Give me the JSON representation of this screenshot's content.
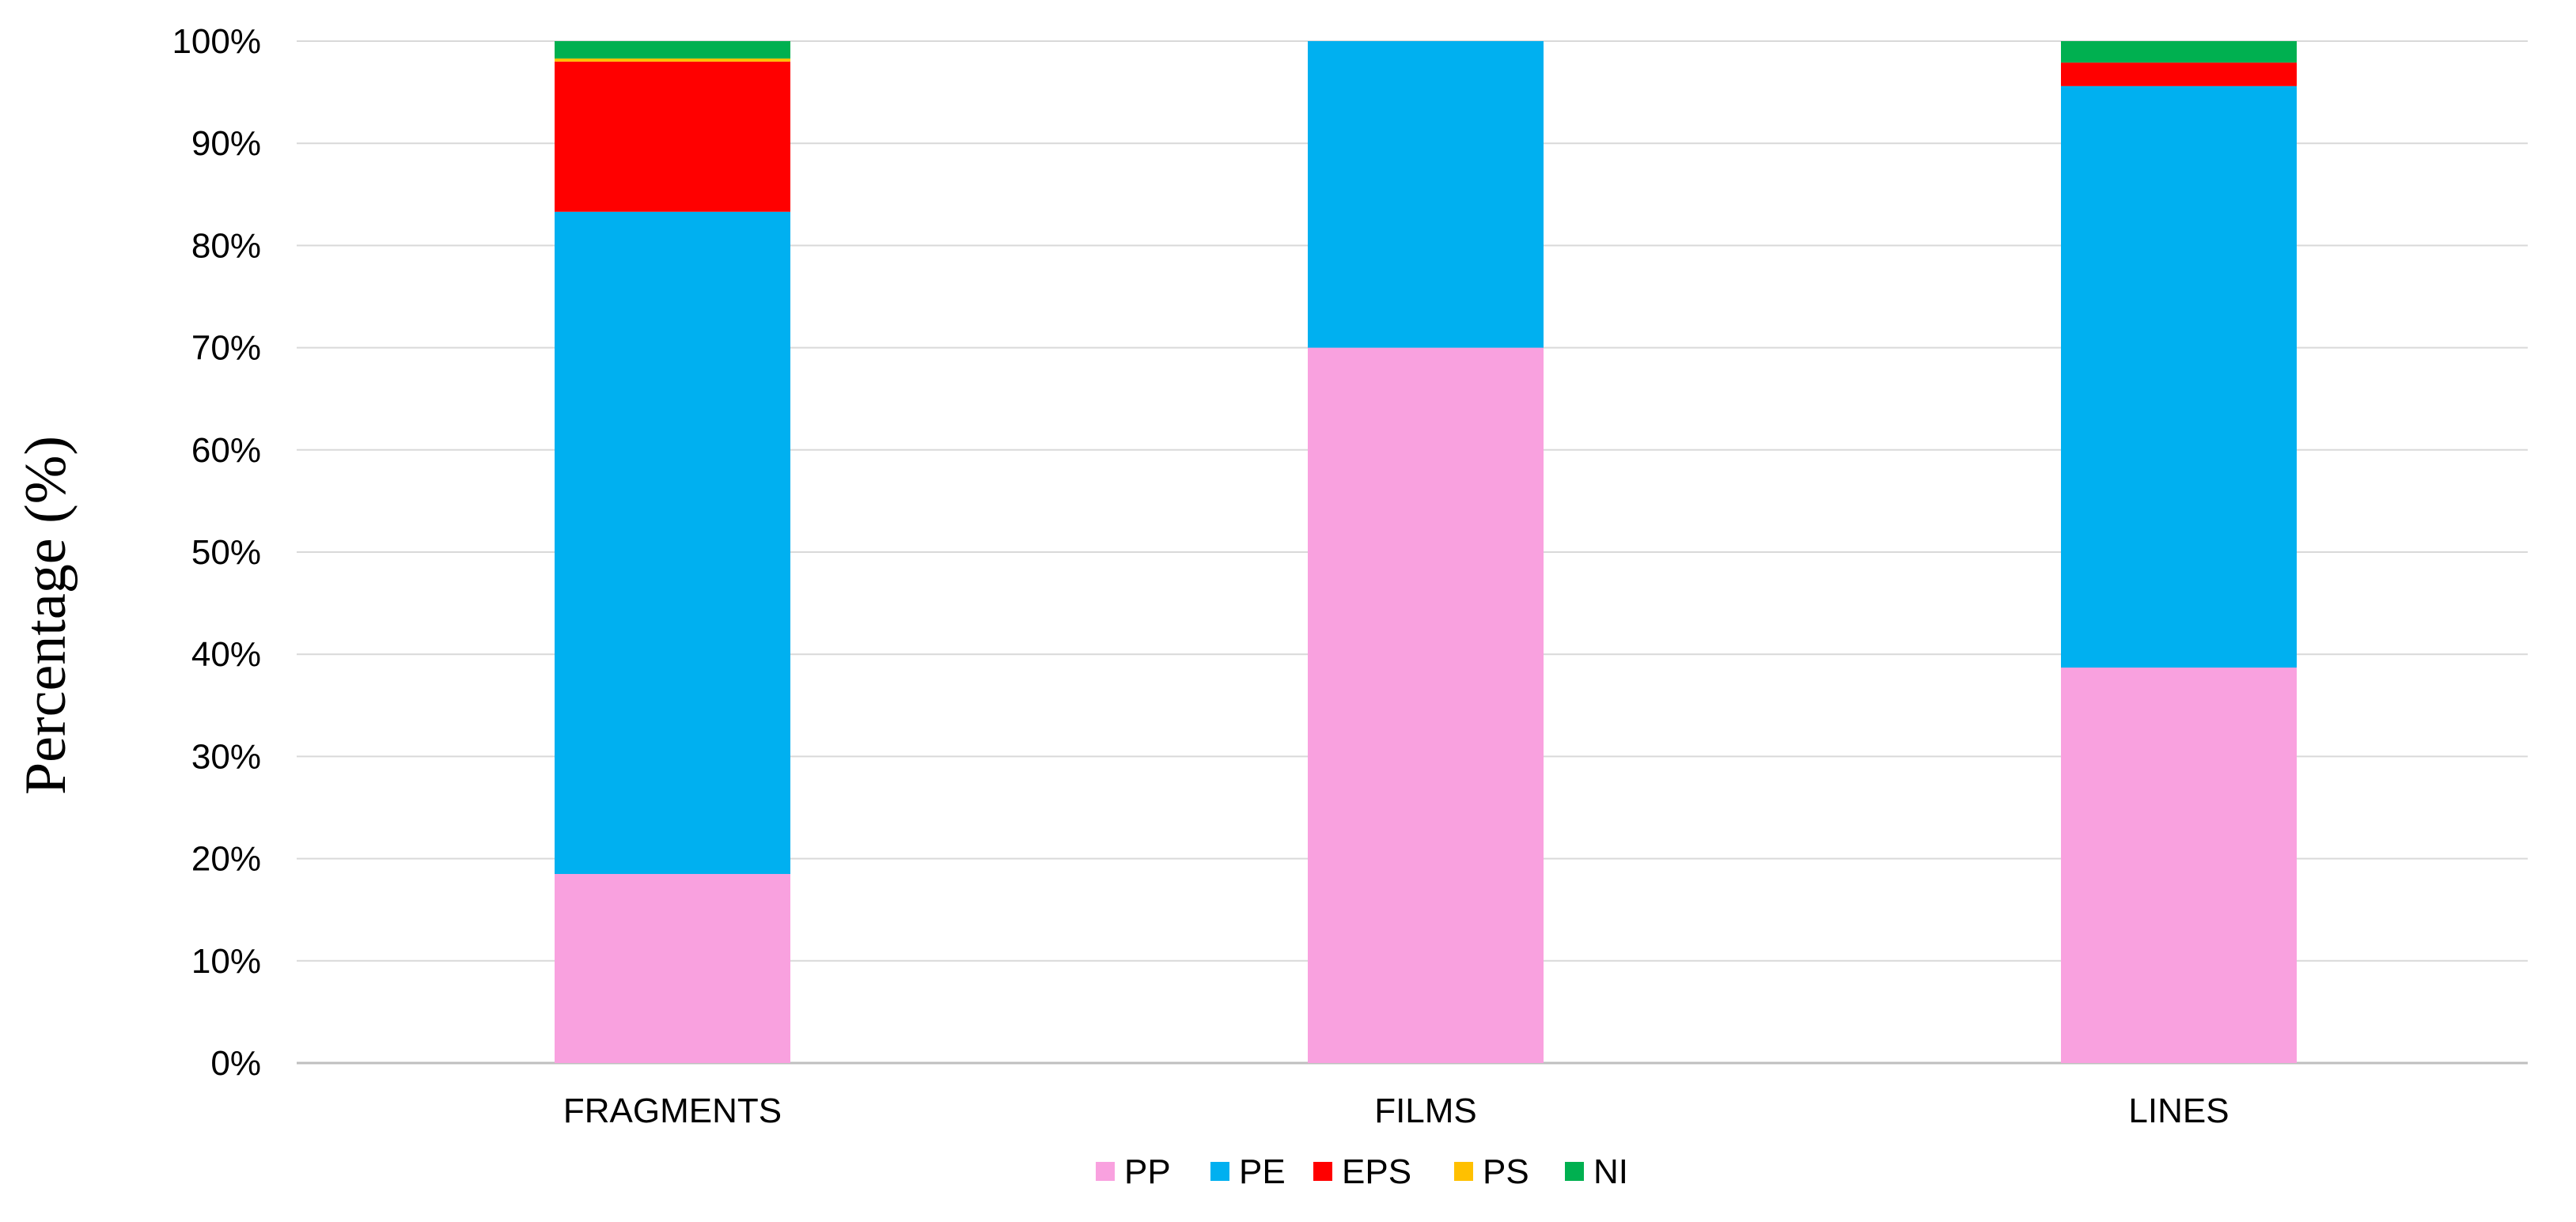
{
  "chart_data": {
    "type": "bar",
    "stacked": true,
    "title": "",
    "xlabel": "",
    "ylabel": "Percentage (%)",
    "ylim": [
      0,
      100
    ],
    "yticks": [
      "0%",
      "10%",
      "20%",
      "30%",
      "40%",
      "50%",
      "60%",
      "70%",
      "80%",
      "90%",
      "100%"
    ],
    "grid": true,
    "legend_position": "bottom",
    "categories": [
      "FRAGMENTS",
      "FILMS",
      "LINES"
    ],
    "series": [
      {
        "name": "PP",
        "color": "#F9A1DF",
        "values": [
          18.5,
          70.0,
          38.7
        ]
      },
      {
        "name": "PE",
        "color": "#00B0F0",
        "values": [
          64.8,
          30.0,
          56.9
        ]
      },
      {
        "name": "EPS",
        "color": "#FF0000",
        "values": [
          14.7,
          0.0,
          2.3
        ]
      },
      {
        "name": "PS",
        "color": "#FFC000",
        "values": [
          0.3,
          0.0,
          0.0
        ]
      },
      {
        "name": "NI",
        "color": "#00B050",
        "values": [
          1.7,
          0.0,
          2.1
        ]
      }
    ]
  }
}
